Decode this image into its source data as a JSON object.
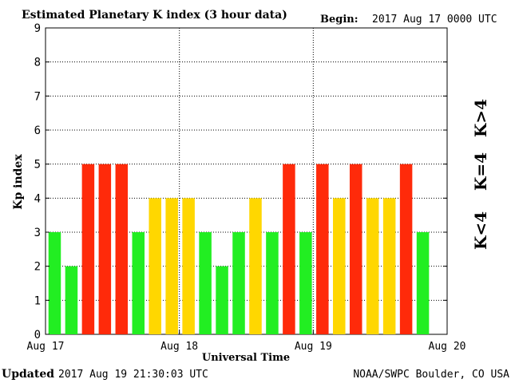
{
  "chart_data": {
    "type": "bar",
    "title": "Estimated Planetary K index (3 hour data)",
    "begin_label": "Begin:",
    "begin_value": "2017 Aug 17 0000 UTC",
    "xlabel": "Universal Time",
    "ylabel": "Kp index",
    "ylim": [
      0,
      9
    ],
    "yticks": [
      "0",
      "1",
      "2",
      "3",
      "4",
      "5",
      "6",
      "7",
      "8",
      "9"
    ],
    "xticks": [
      "Aug 17",
      "Aug 18",
      "Aug 19",
      "Aug 20"
    ],
    "values": [
      3,
      2,
      5,
      5,
      5,
      3,
      4,
      4,
      4,
      3,
      2,
      3,
      4,
      3,
      5,
      3,
      5,
      4,
      5,
      4,
      4,
      5,
      3
    ],
    "bar_colors": {
      "low": "#22ee22",
      "mid": "#ffd700",
      "high": "#ff2a0a"
    },
    "legend": [
      {
        "label": "K<4",
        "color": "#22ee22"
      },
      {
        "label": "K=4",
        "color": "#ffd700"
      },
      {
        "label": "K>4",
        "color": "#ff2a0a"
      }
    ],
    "legend_placement": "right",
    "grid": "dotted"
  },
  "footer": {
    "updated_label": "Updated",
    "updated_value": "2017 Aug 19 21:30:03 UTC",
    "source": "NOAA/SWPC Boulder, CO USA"
  }
}
